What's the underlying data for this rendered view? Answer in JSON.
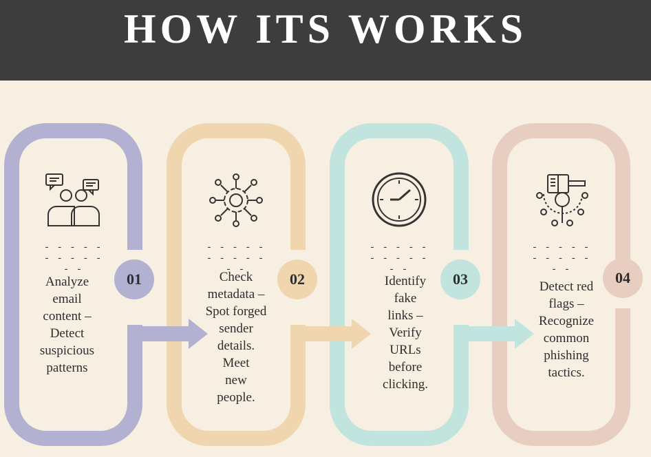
{
  "header": {
    "title": "HOW ITS WORKS"
  },
  "colors": {
    "header_bg": "#3d3d3d",
    "page_bg": "#f7efe1",
    "step1": "#b3b1d2",
    "step2": "#f0d6af",
    "step3": "#c2e4de",
    "step4": "#e8cdc1"
  },
  "steps": [
    {
      "number": "01",
      "divider": "- - - - - - - - - - - -",
      "icon": "discussion-people-icon",
      "text": "Analyze\nemail\ncontent –\nDetect\nsuspicious\npatterns"
    },
    {
      "number": "02",
      "divider": "- - - - - - - - - - - -",
      "icon": "gear-network-icon",
      "text": "Check\nmetadata –\nSpot forged\nsender\ndetails.\nMeet\nnew\npeople."
    },
    {
      "number": "03",
      "divider": "- - - - - - - - - - - -",
      "icon": "clock-icon",
      "text": "Identify\nfake\nlinks –\nVerify\nURLs\nbefore\nclicking."
    },
    {
      "number": "04",
      "divider": "- - - - - - - - - - - -",
      "icon": "research-mind-icon",
      "text": "Detect red\nflags –\nRecognize\ncommon\nphishing\ntactics."
    }
  ]
}
